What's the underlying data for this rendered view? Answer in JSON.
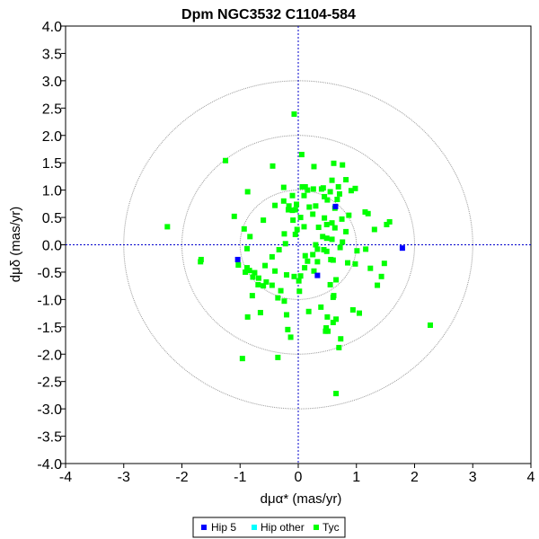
{
  "chart_data": {
    "type": "scatter",
    "title": "Dpm NGC3532  C1104-584",
    "xlabel": "dμα* (mas/yr)",
    "ylabel": "dμδ (mas/yr)",
    "xlim": [
      -4,
      4
    ],
    "ylim": [
      -4,
      4
    ],
    "xticks": [
      "-4",
      "-3",
      "-2",
      "-1",
      "0",
      "1",
      "2",
      "3",
      "4"
    ],
    "yticks": [
      "4.0",
      "3.5",
      "3.0",
      "2.5",
      "2.0",
      "1.5",
      "1.0",
      "0.5",
      "0.0",
      "-0.5",
      "-1.0",
      "-1.5",
      "-2.0",
      "-2.5",
      "-3.0",
      "-3.5",
      "-4.0"
    ],
    "circles": [
      1,
      2,
      3
    ],
    "legend_position": "bottom-center",
    "series": [
      {
        "name": "Hip 5",
        "color": "#0000ff",
        "points": [
          [
            0.64,
            0.7
          ],
          [
            -1.04,
            -0.27
          ],
          [
            1.79,
            -0.06
          ],
          [
            0.33,
            -0.56
          ]
        ]
      },
      {
        "name": "Hip other",
        "color": "#00ffff",
        "points": []
      },
      {
        "name": "Tyc",
        "color": "#00ff00",
        "points": [
          [
            -0.07,
            2.39
          ],
          [
            0.06,
            1.65
          ],
          [
            -1.68,
            -0.31
          ],
          [
            -2.25,
            0.33
          ],
          [
            -1.67,
            -0.27
          ],
          [
            -1.03,
            -0.37
          ],
          [
            -1.1,
            0.52
          ],
          [
            -0.88,
            -0.07
          ],
          [
            -0.05,
            0.64
          ],
          [
            0.27,
            1.43
          ],
          [
            0.61,
            1.49
          ],
          [
            0.76,
            1.46
          ],
          [
            0.82,
            1.19
          ],
          [
            0.4,
            1.02
          ],
          [
            0.91,
            0.99
          ],
          [
            0.58,
            1.18
          ],
          [
            0.69,
            1.06
          ],
          [
            0.12,
            1.06
          ],
          [
            0.26,
            1.02
          ],
          [
            0.43,
            1.04
          ],
          [
            0.98,
            1.03
          ],
          [
            0.87,
            0.54
          ],
          [
            0.45,
            0.88
          ],
          [
            0.67,
            0.83
          ],
          [
            0.71,
            0.93
          ],
          [
            0.55,
            0.97
          ],
          [
            0.5,
            0.82
          ],
          [
            0.3,
            0.71
          ],
          [
            0.19,
            0.69
          ],
          [
            -0.1,
            0.63
          ],
          [
            0.63,
            0.67
          ],
          [
            0.25,
            0.56
          ],
          [
            0.75,
            0.47
          ],
          [
            0.45,
            0.49
          ],
          [
            0.49,
            0.37
          ],
          [
            0.63,
            0.31
          ],
          [
            0.82,
            0.24
          ],
          [
            0.42,
            0.15
          ],
          [
            0.35,
            0.32
          ],
          [
            0.58,
            0.1
          ],
          [
            0.76,
            0.05
          ],
          [
            0.3,
            0.0
          ],
          [
            0.72,
            -0.05
          ],
          [
            0.44,
            -0.09
          ],
          [
            0.49,
            -0.12
          ],
          [
            0.25,
            -0.18
          ],
          [
            0.16,
            -0.3
          ],
          [
            0.33,
            -0.31
          ],
          [
            0.6,
            -0.28
          ],
          [
            0.27,
            -0.48
          ],
          [
            0.11,
            -0.42
          ],
          [
            0.04,
            -0.57
          ],
          [
            0.85,
            -0.33
          ],
          [
            0.98,
            -0.35
          ],
          [
            1.01,
            -0.11
          ],
          [
            1.16,
            -0.08
          ],
          [
            1.24,
            -0.43
          ],
          [
            1.48,
            -0.34
          ],
          [
            1.52,
            0.37
          ],
          [
            1.57,
            0.42
          ],
          [
            1.31,
            0.28
          ],
          [
            1.15,
            0.6
          ],
          [
            1.2,
            0.57
          ],
          [
            1.43,
            -0.58
          ],
          [
            1.36,
            -0.74
          ],
          [
            0.94,
            -1.19
          ],
          [
            1.05,
            -1.25
          ],
          [
            0.65,
            -0.64
          ],
          [
            0.6,
            -0.96
          ],
          [
            0.5,
            -1.32
          ],
          [
            0.6,
            -1.42
          ],
          [
            0.73,
            -1.72
          ],
          [
            0.7,
            -1.88
          ],
          [
            0.51,
            -1.58
          ],
          [
            0.48,
            -1.52
          ],
          [
            0.39,
            -1.14
          ],
          [
            0.18,
            -1.22
          ],
          [
            0.02,
            -0.85
          ],
          [
            0.01,
            -0.66
          ],
          [
            -0.07,
            -0.58
          ],
          [
            -0.2,
            -0.55
          ],
          [
            -0.3,
            -0.84
          ],
          [
            -0.24,
            -1.03
          ],
          [
            -0.2,
            -1.28
          ],
          [
            -0.18,
            -1.55
          ],
          [
            -0.35,
            -0.97
          ],
          [
            -0.45,
            -0.74
          ],
          [
            -0.4,
            -0.48
          ],
          [
            -0.45,
            -0.22
          ],
          [
            -0.33,
            -0.09
          ],
          [
            -0.22,
            0.02
          ],
          [
            -0.24,
            0.2
          ],
          [
            -0.09,
            0.45
          ],
          [
            -0.1,
            0.9
          ],
          [
            -0.16,
            0.71
          ],
          [
            -0.03,
            0.74
          ],
          [
            0.04,
            0.5
          ],
          [
            0.1,
            0.33
          ],
          [
            -0.02,
            0.28
          ],
          [
            -0.05,
            0.19
          ],
          [
            -0.75,
            -0.51
          ],
          [
            -0.68,
            -0.61
          ],
          [
            -0.69,
            -0.73
          ],
          [
            -0.6,
            -0.75
          ],
          [
            -0.65,
            -1.24
          ],
          [
            -0.78,
            -0.59
          ],
          [
            -0.84,
            -0.47
          ],
          [
            -0.88,
            -0.42
          ],
          [
            -0.91,
            -0.5
          ],
          [
            -0.79,
            -0.93
          ],
          [
            -0.87,
            -1.32
          ],
          [
            -0.96,
            -2.08
          ],
          [
            -0.35,
            -2.06
          ],
          [
            -0.57,
            -0.38
          ],
          [
            -0.55,
            -0.68
          ],
          [
            -0.83,
            0.15
          ],
          [
            -0.6,
            0.45
          ],
          [
            -0.93,
            0.29
          ],
          [
            -0.87,
            0.97
          ],
          [
            -0.4,
            0.72
          ],
          [
            -0.17,
            0.64
          ],
          [
            -0.25,
            0.8
          ],
          [
            -0.44,
            1.44
          ],
          [
            0.07,
            1.06
          ],
          [
            0.16,
            1.0
          ],
          [
            0.58,
            0.4
          ],
          [
            0.49,
            0.12
          ],
          [
            0.33,
            -0.08
          ],
          [
            0.12,
            -0.2
          ],
          [
            0.56,
            -0.27
          ],
          [
            0.55,
            -0.73
          ],
          [
            0.61,
            -0.93
          ],
          [
            0.65,
            -1.36
          ],
          [
            0.47,
            -1.58
          ],
          [
            -0.13,
            -1.69
          ],
          [
            -1.25,
            1.54
          ],
          [
            -0.25,
            1.05
          ],
          [
            0.1,
            0.9
          ],
          [
            2.27,
            -1.47
          ],
          [
            0.65,
            -2.72
          ]
        ]
      }
    ]
  }
}
